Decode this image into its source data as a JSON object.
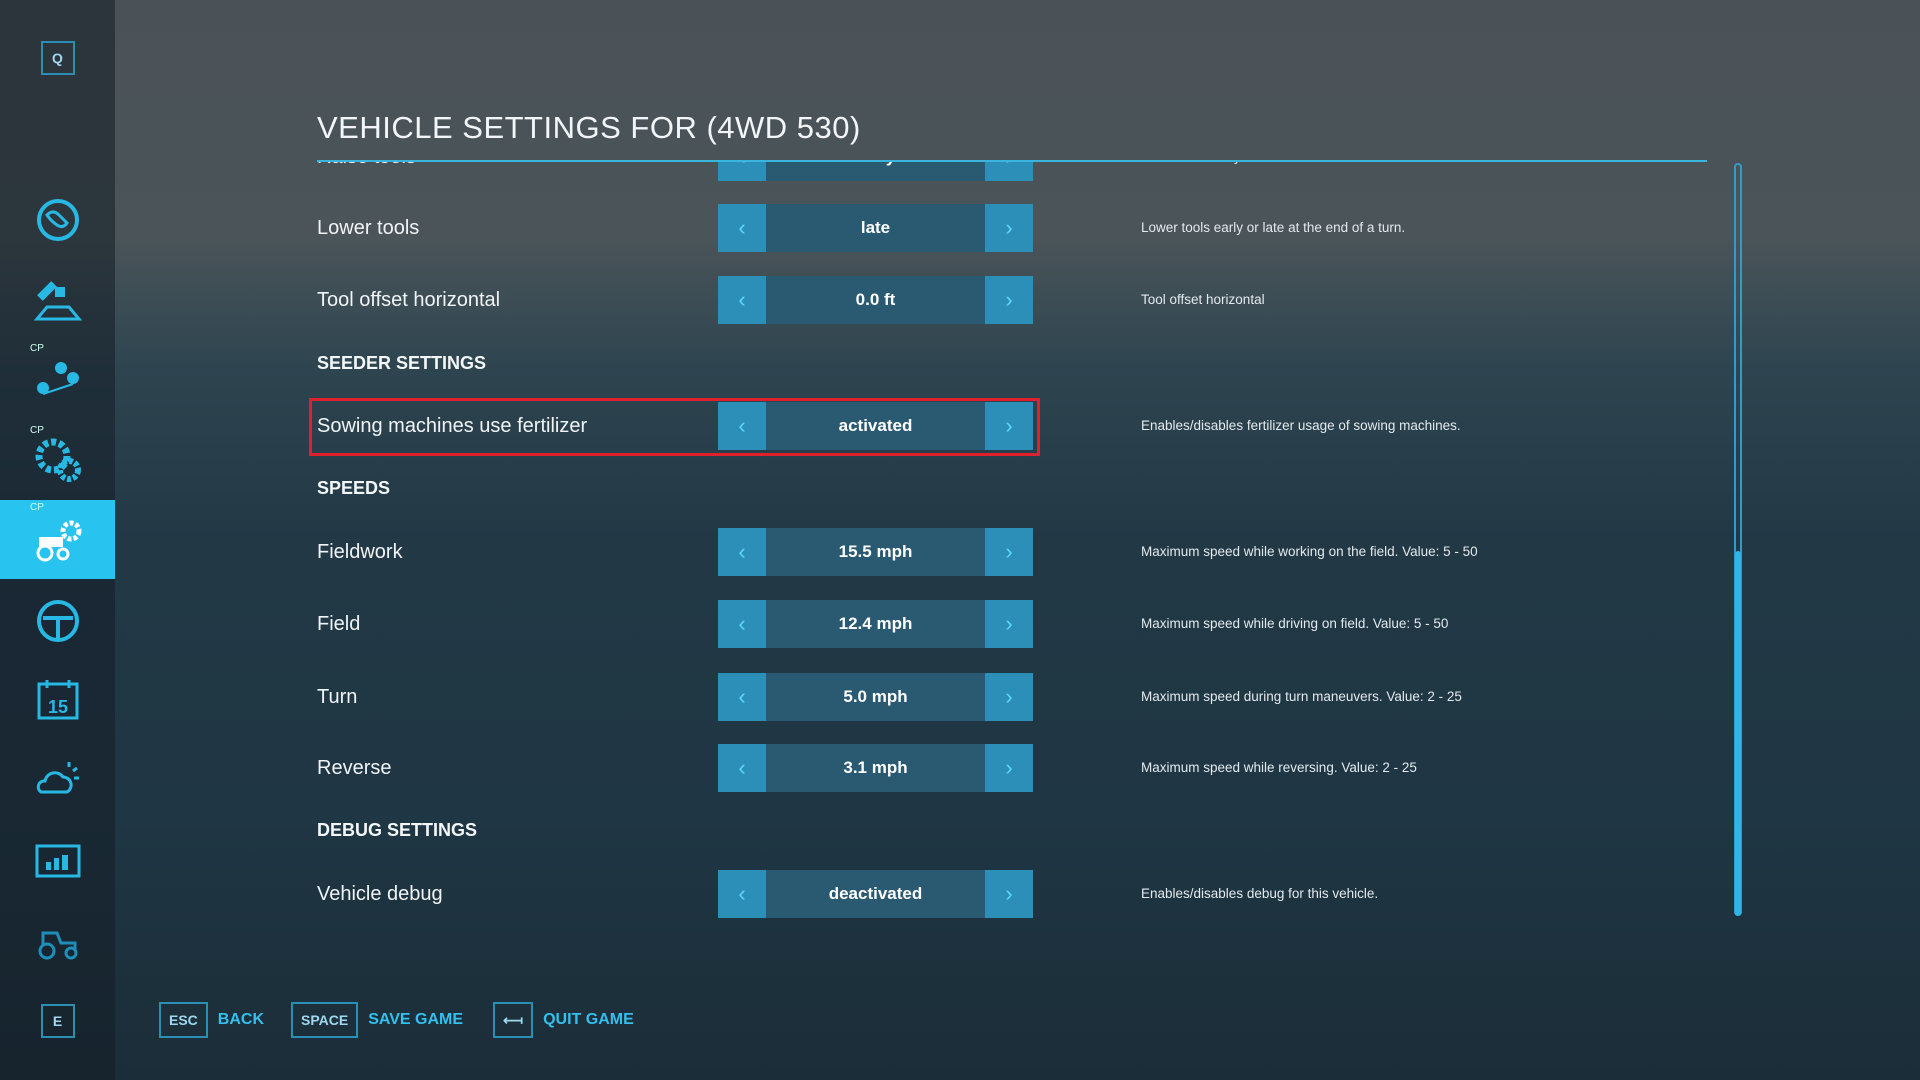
{
  "sidebar": {
    "top_key": "Q",
    "bottom_key": "E",
    "cp_label": "CP",
    "calendar_day": "15",
    "items": [
      {
        "icon": "globe-map-icon"
      },
      {
        "icon": "satellite-field-icon"
      },
      {
        "icon": "cp-route-pins-icon"
      },
      {
        "icon": "cp-gears-icon"
      },
      {
        "icon": "cp-vehicle-settings-icon",
        "active": true
      },
      {
        "icon": "steering-wheel-icon"
      },
      {
        "icon": "calendar-icon"
      },
      {
        "icon": "weather-icon"
      },
      {
        "icon": "statistics-icon"
      },
      {
        "icon": "tractor-icon"
      }
    ]
  },
  "title": "VEHICLE SETTINGS FOR (4WD 530)",
  "rows": [
    {
      "label": "Raise tools",
      "value": "early",
      "desc": "Raise tools early or late at the end of a turn."
    },
    {
      "label": "Lower tools",
      "value": "late",
      "desc": "Lower tools early or late at the end of a turn."
    },
    {
      "label": "Tool offset horizontal",
      "value": "0.0 ft",
      "desc": "Tool offset horizontal"
    },
    {
      "label": "Sowing machines use fertilizer",
      "value": "activated",
      "desc": "Enables/disables fertilizer usage of sowing machines."
    },
    {
      "label": "Fieldwork",
      "value": "15.5 mph",
      "desc": "Maximum speed while working on the field. Value: 5 - 50"
    },
    {
      "label": "Field",
      "value": "12.4 mph",
      "desc": "Maximum speed while driving on field. Value: 5 - 50"
    },
    {
      "label": "Turn",
      "value": "5.0 mph",
      "desc": "Maximum speed during turn maneuvers. Value: 2 - 25"
    },
    {
      "label": "Reverse",
      "value": "3.1 mph",
      "desc": "Maximum speed while reversing. Value: 2 - 25"
    },
    {
      "label": "Vehicle debug",
      "value": "deactivated",
      "desc": "Enables/disables debug for this vehicle."
    }
  ],
  "sections": {
    "seeder": "SEEDER SETTINGS",
    "speeds": "SPEEDS",
    "debug": "DEBUG SETTINGS"
  },
  "footer": {
    "back_key": "ESC",
    "back": "BACK",
    "save_key": "SPACE",
    "save": "SAVE GAME",
    "quit_key": "⟻",
    "quit": "QUIT GAME"
  },
  "colors": {
    "accent": "#28c3ef",
    "highlight": "#e0202a"
  }
}
